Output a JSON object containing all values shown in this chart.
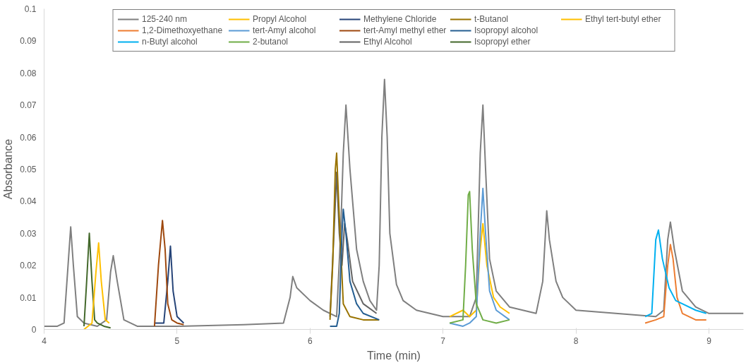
{
  "chart_data": {
    "type": "line",
    "xlabel": "Time (min)",
    "ylabel": "Absorbance",
    "xlim": [
      4,
      9.26
    ],
    "xticks": [
      4,
      5,
      6,
      7,
      8,
      9
    ],
    "ylim": [
      0,
      0.1
    ],
    "yticks": [
      0,
      0.01,
      0.02,
      0.03,
      0.04,
      0.05,
      0.06,
      0.07,
      0.08,
      0.09,
      0.1
    ],
    "grid": false,
    "legend": "top",
    "line_style": "solid",
    "marker": "none",
    "series": [
      {
        "name": "125-240 nm",
        "color": "#7f7f7f",
        "x": [
          4.0,
          4.1,
          4.15,
          4.18,
          4.2,
          4.22,
          4.25,
          4.3,
          4.4,
          4.47,
          4.5,
          4.52,
          4.55,
          4.6,
          4.7,
          5.0,
          5.5,
          5.8,
          5.85,
          5.87,
          5.9,
          6.0,
          6.1,
          6.2,
          6.23,
          6.25,
          6.27,
          6.3,
          6.35,
          6.4,
          6.45,
          6.5,
          6.52,
          6.54,
          6.56,
          6.58,
          6.6,
          6.65,
          6.7,
          6.8,
          7.0,
          7.2,
          7.25,
          7.28,
          7.3,
          7.32,
          7.35,
          7.4,
          7.5,
          7.7,
          7.75,
          7.78,
          7.8,
          7.85,
          7.9,
          8.0,
          8.3,
          8.6,
          8.66,
          8.69,
          8.71,
          8.74,
          8.8,
          8.9,
          9.0,
          9.26
        ],
        "values": [
          0.001,
          0.001,
          0.002,
          0.02,
          0.032,
          0.02,
          0.004,
          0.002,
          0.001,
          0.003,
          0.018,
          0.023,
          0.015,
          0.003,
          0.001,
          0.001,
          0.0015,
          0.002,
          0.01,
          0.0165,
          0.013,
          0.009,
          0.006,
          0.004,
          0.03,
          0.055,
          0.07,
          0.05,
          0.025,
          0.015,
          0.009,
          0.006,
          0.02,
          0.06,
          0.078,
          0.06,
          0.03,
          0.014,
          0.009,
          0.006,
          0.004,
          0.004,
          0.01,
          0.055,
          0.07,
          0.05,
          0.022,
          0.012,
          0.007,
          0.005,
          0.015,
          0.037,
          0.028,
          0.015,
          0.01,
          0.006,
          0.005,
          0.004,
          0.006,
          0.028,
          0.0335,
          0.025,
          0.012,
          0.007,
          0.005,
          0.005
        ]
      },
      {
        "name": "1,2-Dimethoxyethane",
        "color": "#ed7d31",
        "x": [
          8.52,
          8.6,
          8.66,
          8.69,
          8.71,
          8.73,
          8.76,
          8.8,
          8.9,
          8.98
        ],
        "values": [
          0.002,
          0.003,
          0.004,
          0.02,
          0.0265,
          0.022,
          0.01,
          0.005,
          0.003,
          0.003
        ]
      },
      {
        "name": "n-Butyl alcohol",
        "color": "#00b0f0",
        "x": [
          8.52,
          8.57,
          8.6,
          8.62,
          8.65,
          8.7,
          8.75,
          8.8,
          8.9,
          8.98
        ],
        "values": [
          0.004,
          0.005,
          0.028,
          0.031,
          0.022,
          0.013,
          0.009,
          0.008,
          0.006,
          0.005
        ]
      },
      {
        "name": "Propyl Alcohol",
        "color": "#ffc000",
        "x": [
          7.05,
          7.15,
          7.2,
          7.25,
          7.28,
          7.3,
          7.33,
          7.38,
          7.43,
          7.5
        ],
        "values": [
          0.004,
          0.006,
          0.004,
          0.006,
          0.025,
          0.033,
          0.02,
          0.01,
          0.007,
          0.005
        ]
      },
      {
        "name": "tert-Amyl alcohol",
        "color": "#5b9bd5",
        "x": [
          7.05,
          7.15,
          7.2,
          7.25,
          7.28,
          7.3,
          7.32,
          7.35,
          7.4,
          7.5
        ],
        "values": [
          0.002,
          0.001,
          0.002,
          0.004,
          0.03,
          0.044,
          0.03,
          0.012,
          0.006,
          0.003
        ]
      },
      {
        "name": "2-butanol",
        "color": "#70ad47",
        "x": [
          7.05,
          7.15,
          7.17,
          7.19,
          7.2,
          7.22,
          7.25,
          7.3,
          7.4,
          7.5
        ],
        "values": [
          0.002,
          0.003,
          0.02,
          0.042,
          0.043,
          0.025,
          0.008,
          0.003,
          0.002,
          0.003
        ]
      },
      {
        "name": "Methylene Chloride",
        "color": "#264478",
        "x": [
          4.83,
          4.9,
          4.93,
          4.95,
          4.97,
          5.0,
          5.05
        ],
        "values": [
          0.002,
          0.002,
          0.015,
          0.026,
          0.012,
          0.004,
          0.002
        ]
      },
      {
        "name": "tert-Amyl methyl ether",
        "color": "#9e480e",
        "x": [
          4.83,
          4.86,
          4.89,
          4.91,
          4.93,
          4.96,
          5.0,
          5.05
        ],
        "values": [
          0.001,
          0.02,
          0.034,
          0.025,
          0.008,
          0.003,
          0.002,
          0.0015
        ]
      },
      {
        "name": "Ethyl Alcohol",
        "color": "#636363",
        "x": [
          6.15,
          6.18,
          6.2,
          6.22,
          6.24,
          6.26,
          6.28,
          6.32,
          6.4,
          6.5
        ],
        "values": [
          0.004,
          0.03,
          0.049,
          0.03,
          0.02,
          0.033,
          0.028,
          0.015,
          0.008,
          0.005
        ]
      },
      {
        "name": "t-Butanol",
        "color": "#997300",
        "x": [
          6.15,
          6.17,
          6.19,
          6.2,
          6.22,
          6.25,
          6.3,
          6.4,
          6.52
        ],
        "values": [
          0.003,
          0.02,
          0.05,
          0.055,
          0.035,
          0.008,
          0.004,
          0.003,
          0.003
        ]
      },
      {
        "name": "Isopropyl alcohol",
        "color": "#255e91",
        "x": [
          6.15,
          6.2,
          6.22,
          6.24,
          6.25,
          6.27,
          6.3,
          6.35,
          6.4,
          6.52
        ],
        "values": [
          0.001,
          0.001,
          0.005,
          0.03,
          0.0375,
          0.03,
          0.015,
          0.008,
          0.005,
          0.003
        ]
      },
      {
        "name": "Isopropyl ether",
        "color": "#43682b",
        "x": [
          4.3,
          4.32,
          4.34,
          4.36,
          4.38,
          4.4,
          4.45,
          4.5
        ],
        "values": [
          0.001,
          0.015,
          0.03,
          0.015,
          0.003,
          0.002,
          0.001,
          0.0005
        ]
      },
      {
        "name": "Ethyl tert-butyl ether",
        "color": "#ffc000",
        "x": [
          4.3,
          4.36,
          4.39,
          4.41,
          4.43,
          4.46,
          4.49
        ],
        "values": [
          0,
          0.002,
          0.018,
          0.027,
          0.015,
          0.003,
          0.002
        ]
      }
    ]
  }
}
